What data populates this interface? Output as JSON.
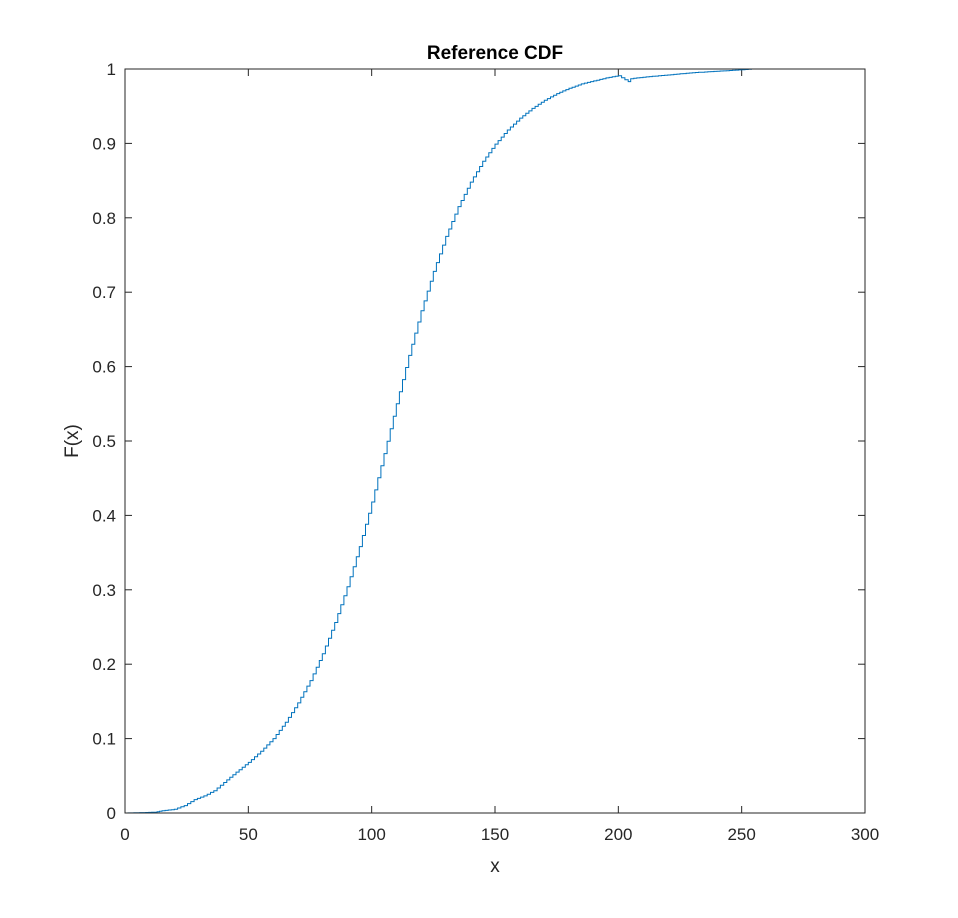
{
  "chart_data": {
    "type": "line",
    "subtype": "stairs",
    "title": "Reference CDF",
    "xlabel": "x",
    "ylabel": "F(x)",
    "xlim": [
      0,
      300
    ],
    "ylim": [
      0,
      1
    ],
    "xticks": [
      0,
      50,
      100,
      150,
      200,
      250,
      300
    ],
    "yticks": [
      0,
      0.1,
      0.2,
      0.3,
      0.4,
      0.5,
      0.6,
      0.7,
      0.8,
      0.9,
      1
    ],
    "xtick_labels": [
      "0",
      "50",
      "100",
      "150",
      "200",
      "250",
      "300"
    ],
    "ytick_labels": [
      "0",
      "0.1",
      "0.2",
      "0.3",
      "0.4",
      "0.5",
      "0.6",
      "0.7",
      "0.8",
      "0.9",
      "1"
    ],
    "grid": false,
    "box": true,
    "series": [
      {
        "color": "#0072BD",
        "x": [
          0,
          12,
          15,
          20,
          24,
          28,
          32,
          36,
          40,
          45,
          50,
          55,
          60,
          65,
          70,
          75,
          80,
          85,
          90,
          95,
          100,
          105,
          110,
          115,
          120,
          125,
          130,
          135,
          140,
          145,
          150,
          155,
          160,
          165,
          170,
          175,
          180,
          185,
          190,
          195,
          200,
          204,
          205,
          210,
          220,
          230,
          240,
          250,
          254
        ],
        "y": [
          0,
          0.001,
          0.003,
          0.005,
          0.01,
          0.018,
          0.023,
          0.03,
          0.041,
          0.055,
          0.068,
          0.083,
          0.1,
          0.122,
          0.148,
          0.178,
          0.214,
          0.256,
          0.304,
          0.358,
          0.418,
          0.483,
          0.55,
          0.615,
          0.675,
          0.728,
          0.775,
          0.815,
          0.848,
          0.876,
          0.899,
          0.918,
          0.934,
          0.947,
          0.958,
          0.967,
          0.974,
          0.98,
          0.984,
          0.988,
          0.991,
          0.983,
          0.987,
          0.989,
          0.992,
          0.995,
          0.997,
          0.999,
          1.0
        ]
      }
    ]
  }
}
